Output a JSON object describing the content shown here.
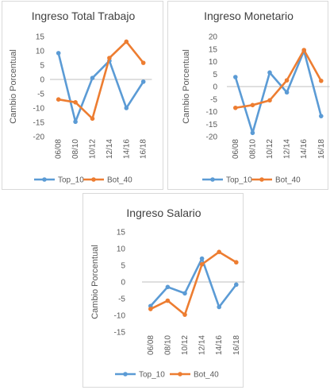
{
  "colors": {
    "top": "#5b9bd5",
    "bot": "#ed7d31",
    "axis": "#bfbfbf",
    "text": "#595959"
  },
  "chart_data": [
    {
      "type": "line",
      "title": "Ingreso Total Trabajo",
      "ylabel": "Cambio Porcentual",
      "xlabel": "",
      "categories": [
        "06/08",
        "08/10",
        "10/12",
        "12/14",
        "14/16",
        "16/18"
      ],
      "ylim": [
        -20,
        15
      ],
      "yticks": [
        15,
        10,
        5,
        0,
        -5,
        -10,
        -15,
        -20
      ],
      "grid": false,
      "legend": "bottom",
      "series": [
        {
          "name": "Top_10",
          "values": [
            9.2,
            -14.8,
            0.5,
            6.5,
            -10.0,
            -0.8
          ]
        },
        {
          "name": "Bot_40",
          "values": [
            -7.0,
            -8.0,
            -13.7,
            7.5,
            13.2,
            5.8
          ]
        }
      ]
    },
    {
      "type": "line",
      "title": "Ingreso Monetario",
      "ylabel": "Cambio Porcentual",
      "xlabel": "",
      "categories": [
        "06/08",
        "08/10",
        "10/12",
        "12/14",
        "14/16",
        "16/18"
      ],
      "ylim": [
        -20,
        20
      ],
      "yticks": [
        20,
        15,
        10,
        5,
        0,
        -5,
        -10,
        -15,
        -20
      ],
      "grid": false,
      "legend": "bottom",
      "series": [
        {
          "name": "Top_10",
          "values": [
            3.8,
            -18.5,
            5.6,
            -2.3,
            14.3,
            -11.8
          ]
        },
        {
          "name": "Bot_40",
          "values": [
            -8.5,
            -7.4,
            -5.5,
            2.5,
            14.6,
            2.3
          ]
        }
      ]
    },
    {
      "type": "line",
      "title": "Ingreso Salario",
      "ylabel": "Cambio Porcentual",
      "xlabel": "",
      "categories": [
        "06/08",
        "08/10",
        "10/12",
        "12/14",
        "14/16",
        "16/18"
      ],
      "ylim": [
        -15,
        15
      ],
      "yticks": [
        15,
        10,
        5,
        0,
        -5,
        -10,
        -15
      ],
      "grid": false,
      "legend": "bottom",
      "series": [
        {
          "name": "Top_10",
          "values": [
            -7.2,
            -1.5,
            -3.4,
            7.0,
            -7.5,
            -0.8
          ]
        },
        {
          "name": "Bot_40",
          "values": [
            -8.1,
            -5.6,
            -9.8,
            5.3,
            9.0,
            5.9
          ]
        }
      ]
    }
  ]
}
